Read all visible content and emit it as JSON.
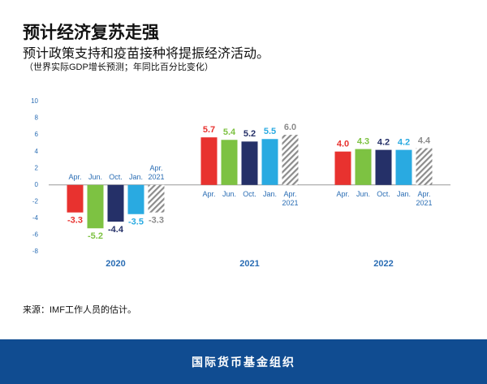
{
  "title": "预计经济复苏走强",
  "subtitle": "预计政策支持和疫苗接种将提振经济活动。",
  "note": "（世界实际GDP增长预测；年同比百分比变化）",
  "chart_data": {
    "type": "bar",
    "categories": [
      "2020",
      "2021",
      "2022"
    ],
    "series": [
      {
        "name": "Apr.",
        "color": "#e8322f",
        "values": [
          -3.3,
          5.7,
          4.0
        ],
        "value_labels": [
          "-3.3",
          "5.7",
          "4.0"
        ]
      },
      {
        "name": "Jun.",
        "color": "#7dc242",
        "values": [
          -5.2,
          5.4,
          4.3
        ],
        "value_labels": [
          "-5.2",
          "5.4",
          "4.3"
        ]
      },
      {
        "name": "Oct.",
        "color": "#253068",
        "values": [
          -4.4,
          5.2,
          4.2
        ],
        "value_labels": [
          "-4.4",
          "5.2",
          "4.2"
        ]
      },
      {
        "name": "Jan.",
        "color": "#29aae1",
        "values": [
          -3.5,
          5.5,
          4.2
        ],
        "value_labels": [
          "-3.5",
          "5.5",
          "4.2"
        ]
      },
      {
        "name": "Apr. 2021",
        "color": "#8c8c8c",
        "hatch": true,
        "values": [
          -3.3,
          6.0,
          4.4
        ],
        "value_labels": [
          "-3.3",
          "6.0",
          "4.4"
        ]
      }
    ],
    "ylim": [
      -8,
      10
    ],
    "yticks": [
      -8,
      -6,
      -4,
      -2,
      0,
      2,
      4,
      6,
      8,
      10
    ]
  },
  "source": "来源：IMF工作人员的估计。",
  "footer": "国际货币基金组织"
}
